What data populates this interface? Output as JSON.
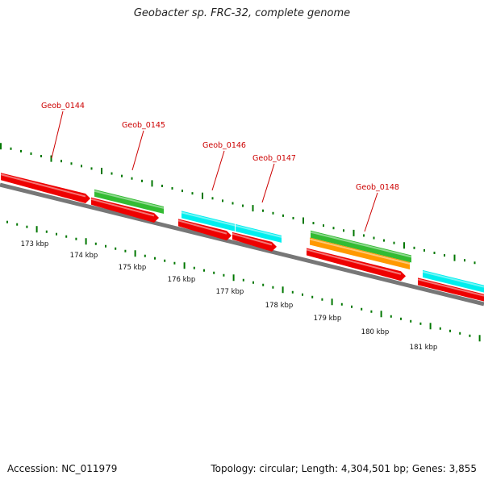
{
  "title": "Geobacter sp. FRC-32, complete genome",
  "footer": {
    "accession": "Accession: NC_011979",
    "summary": "Topology: circular; Length: 4,304,501 bp; Genes: 3,855"
  },
  "colors": {
    "cds": "#ee0000",
    "green": "#33bb33",
    "cyan": "#00eeee",
    "orange": "#ff9900",
    "tick": "#007700",
    "backbone": "#777777",
    "label": "#cc0000"
  },
  "genes": [
    {
      "name": "Geob_0144"
    },
    {
      "name": "Geob_0145"
    },
    {
      "name": "Geob_0146"
    },
    {
      "name": "Geob_0147"
    },
    {
      "name": "Geob_0148"
    }
  ],
  "ruler": [
    "173 kbp",
    "174 kbp",
    "175 kbp",
    "176 kbp",
    "177 kbp",
    "178 kbp",
    "179 kbp",
    "180 kbp",
    "181 kbp"
  ]
}
